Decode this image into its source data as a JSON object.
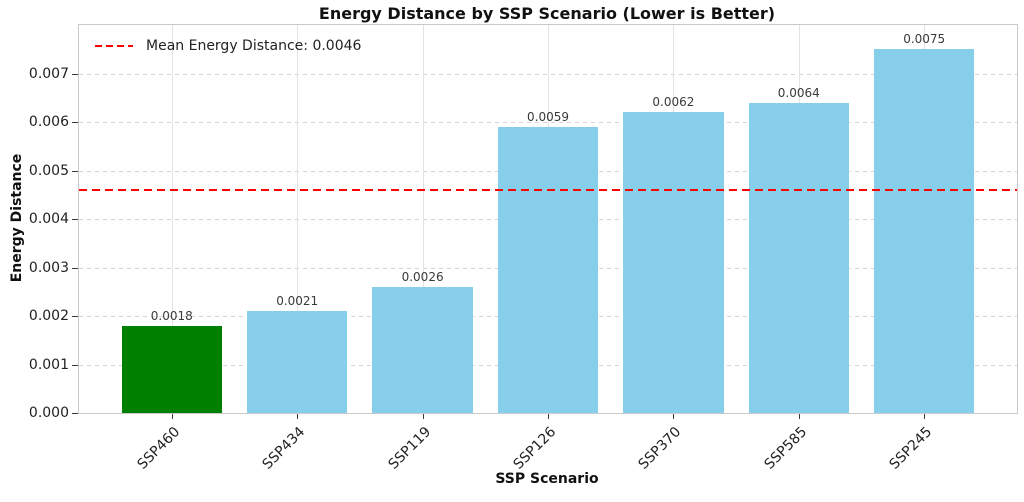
{
  "chart_data": {
    "type": "bar",
    "title": "Energy Distance by SSP Scenario (Lower is Better)",
    "xlabel": "SSP Scenario",
    "ylabel": "Energy Distance",
    "categories": [
      "SSP460",
      "SSP434",
      "SSP119",
      "SSP126",
      "SSP370",
      "SSP585",
      "SSP245"
    ],
    "values": [
      0.0018,
      0.0021,
      0.0026,
      0.0059,
      0.0062,
      0.0064,
      0.0075
    ],
    "bar_labels": [
      "0.0018",
      "0.0021",
      "0.0026",
      "0.0059",
      "0.0062",
      "0.0064",
      "0.0075"
    ],
    "bar_colors": [
      "#008000",
      "#87CEEB",
      "#87CEEB",
      "#87CEEB",
      "#87CEEB",
      "#87CEEB",
      "#87CEEB"
    ],
    "default_color": "#87CEEB",
    "highlight_color": "#008000",
    "mean_line": {
      "value": 0.0046,
      "color": "#ff0000",
      "style": "dashed",
      "label": "Mean Energy Distance: 0.0046"
    },
    "ylim": [
      0,
      0.008
    ],
    "ytick_step": 0.001,
    "yticks": [
      "0.000",
      "0.001",
      "0.002",
      "0.003",
      "0.004",
      "0.005",
      "0.006",
      "0.007"
    ],
    "grid": true,
    "legend_position": "upper left"
  }
}
